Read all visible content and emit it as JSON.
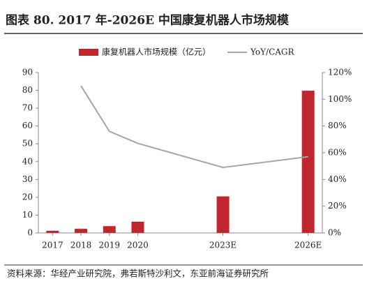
{
  "chart_data": {
    "type": "bar-line",
    "title": "图表 80. 2017 年-2026E 中国康复机器人市场规模",
    "source": "资料来源：华经产业研究院，弗若斯特沙利文，东亚前海证券研究所",
    "x": [
      2017,
      2018,
      2019,
      2020,
      2023,
      2026
    ],
    "xlim": [
      2016.5,
      2026.5
    ],
    "xticks": [
      2017,
      2018,
      2019,
      2020,
      {
        "value": 2023,
        "label": "2023E"
      },
      {
        "value": 2026,
        "label": "2026E"
      }
    ],
    "series": [
      {
        "name": "康复机器人市场规模（亿元）",
        "type": "bar",
        "color": "#c0262d",
        "values": [
          1.2,
          2.3,
          3.8,
          6.3,
          20.5,
          79.8
        ]
      },
      {
        "name": "YoY/CAGR",
        "type": "line",
        "axis": "y2",
        "color": "#a6a6a6",
        "values": [
          null,
          110,
          76,
          67,
          49,
          57
        ]
      }
    ],
    "ylim": [
      0,
      90
    ],
    "yticks": [
      0,
      10,
      20,
      30,
      40,
      50,
      60,
      70,
      80,
      90
    ],
    "y2lim": [
      0,
      120
    ],
    "y2ticks": [
      {
        "value": 0,
        "label": "0%"
      },
      {
        "value": 20,
        "label": "20%"
      },
      {
        "value": 40,
        "label": "40%"
      },
      {
        "value": 60,
        "label": "60%"
      },
      {
        "value": 80,
        "label": "80%"
      },
      {
        "value": 100,
        "label": "100%"
      },
      {
        "value": 120,
        "label": "120%"
      }
    ]
  }
}
